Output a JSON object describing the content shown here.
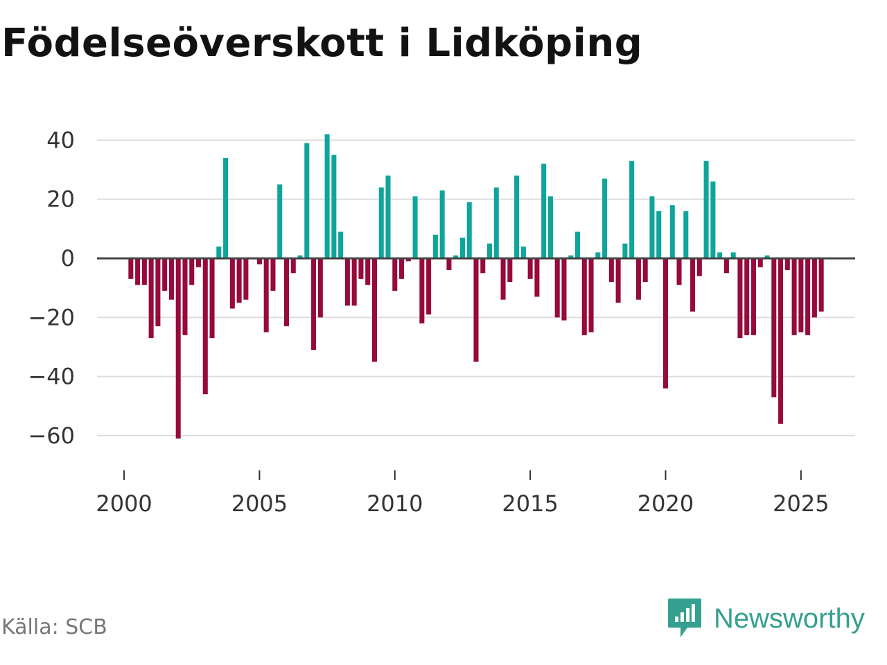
{
  "chart_data": {
    "type": "bar",
    "title": "Födelseöverskott i Lidköping",
    "xlabel": "",
    "ylabel": "",
    "x_start": 2000.25,
    "x_step": 0.25,
    "values": [
      -7,
      -9,
      -9,
      -27,
      -23,
      -11,
      -14,
      -61,
      -26,
      -9,
      -3,
      -46,
      -27,
      4,
      34,
      -17,
      -15,
      -14,
      0,
      -2,
      -25,
      -11,
      25,
      -23,
      -5,
      1,
      39,
      -31,
      -20,
      42,
      35,
      9,
      -16,
      -16,
      -7,
      -9,
      -35,
      24,
      28,
      -11,
      -7,
      -1,
      21,
      -22,
      -19,
      8,
      23,
      -4,
      1,
      7,
      19,
      -35,
      -5,
      5,
      24,
      -14,
      -8,
      28,
      4,
      -7,
      -13,
      32,
      21,
      -20,
      -21,
      1,
      9,
      -26,
      -25,
      2,
      27,
      -8,
      -15,
      5,
      33,
      -14,
      -8,
      21,
      16,
      -44,
      18,
      -9,
      16,
      -18,
      -6,
      33,
      26,
      2,
      -5,
      2,
      -27,
      -26,
      -26,
      -3,
      1,
      -47,
      -56,
      -4,
      -26,
      -25,
      -26,
      -20,
      -18
    ],
    "xlim": [
      1999.0,
      2027.0
    ],
    "ylim": [
      -68,
      45
    ],
    "x_ticks": [
      2000,
      2005,
      2010,
      2015,
      2020,
      2025
    ],
    "x_tick_labels": [
      "2000",
      "2005",
      "2010",
      "2015",
      "2020",
      "2025"
    ],
    "y_ticks": [
      40,
      20,
      0,
      -20,
      -40,
      -60
    ],
    "y_tick_labels": [
      "40",
      "20",
      "0",
      "−20",
      "−40",
      "−60"
    ],
    "grid": true,
    "colors": {
      "positive": "#0fa59b",
      "negative": "#960a3c",
      "grid": "#dddddd",
      "zero_line": "#444444",
      "axis": "#333333"
    }
  },
  "source": "Källa: SCB",
  "brand": {
    "name": "Newsworthy",
    "color": "#35a08f",
    "icon": "newsworthy-logo-icon"
  }
}
